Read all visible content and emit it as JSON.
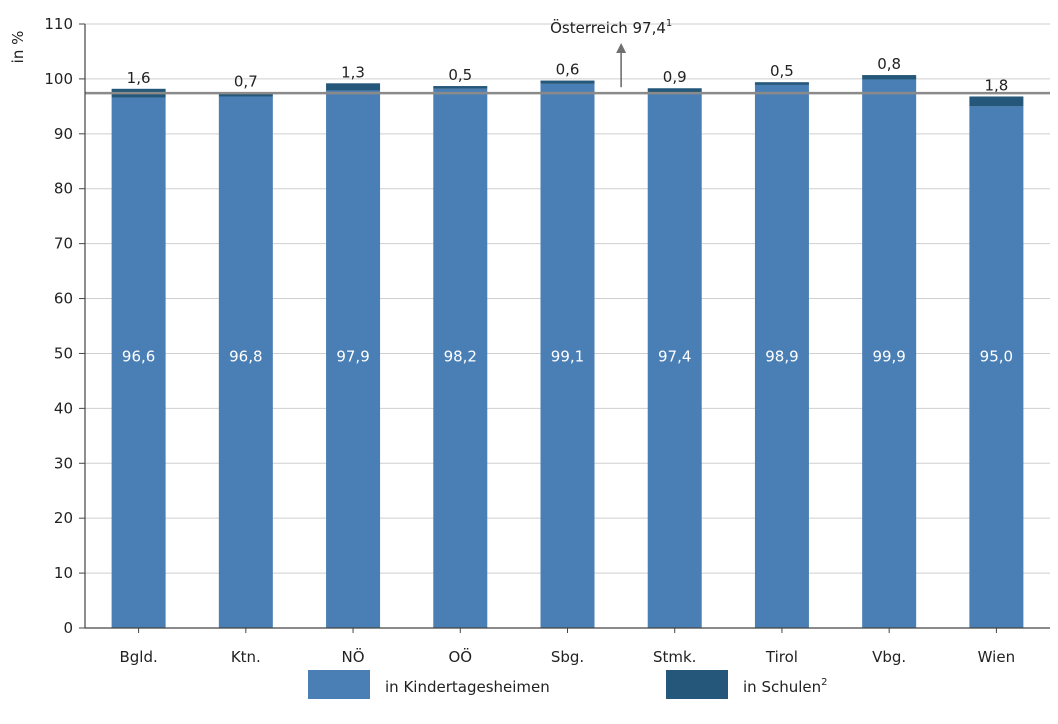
{
  "chart_data": {
    "type": "bar",
    "stacked": true,
    "ylabel": "in %",
    "ylim": [
      0,
      110
    ],
    "yticks": [
      "0",
      "10",
      "20",
      "30",
      "40",
      "50",
      "60",
      "70",
      "80",
      "90",
      "100",
      "110"
    ],
    "grid": true,
    "categories": [
      "Bgld.",
      "Ktn.",
      "NÖ",
      "OÖ",
      "Sbg.",
      "Stmk.",
      "Tirol",
      "Vbg.",
      "Wien"
    ],
    "series": [
      {
        "name": "in Kindertagesheimen",
        "color": "#4a7fb5",
        "values": [
          96.6,
          96.8,
          97.9,
          98.2,
          99.1,
          97.4,
          98.9,
          99.9,
          95.0
        ],
        "labels": [
          "96,6",
          "96,8",
          "97,9",
          "98,2",
          "99,1",
          "97,4",
          "98,9",
          "99,9",
          "95,0"
        ]
      },
      {
        "name": "in Schulen",
        "name_sup": "2",
        "color": "#245779",
        "values": [
          1.6,
          0.7,
          1.3,
          0.5,
          0.6,
          0.9,
          0.5,
          0.8,
          1.8
        ],
        "labels": [
          "1,6",
          "0,7",
          "1,3",
          "0,5",
          "0,6",
          "0,9",
          "0,5",
          "0,8",
          "1,8"
        ]
      }
    ],
    "reference_line": {
      "value": 97.4,
      "label": "Österreich 97,4",
      "label_sup": "1",
      "color": "#8a8a8a"
    },
    "legend_position": "bottom-center"
  }
}
